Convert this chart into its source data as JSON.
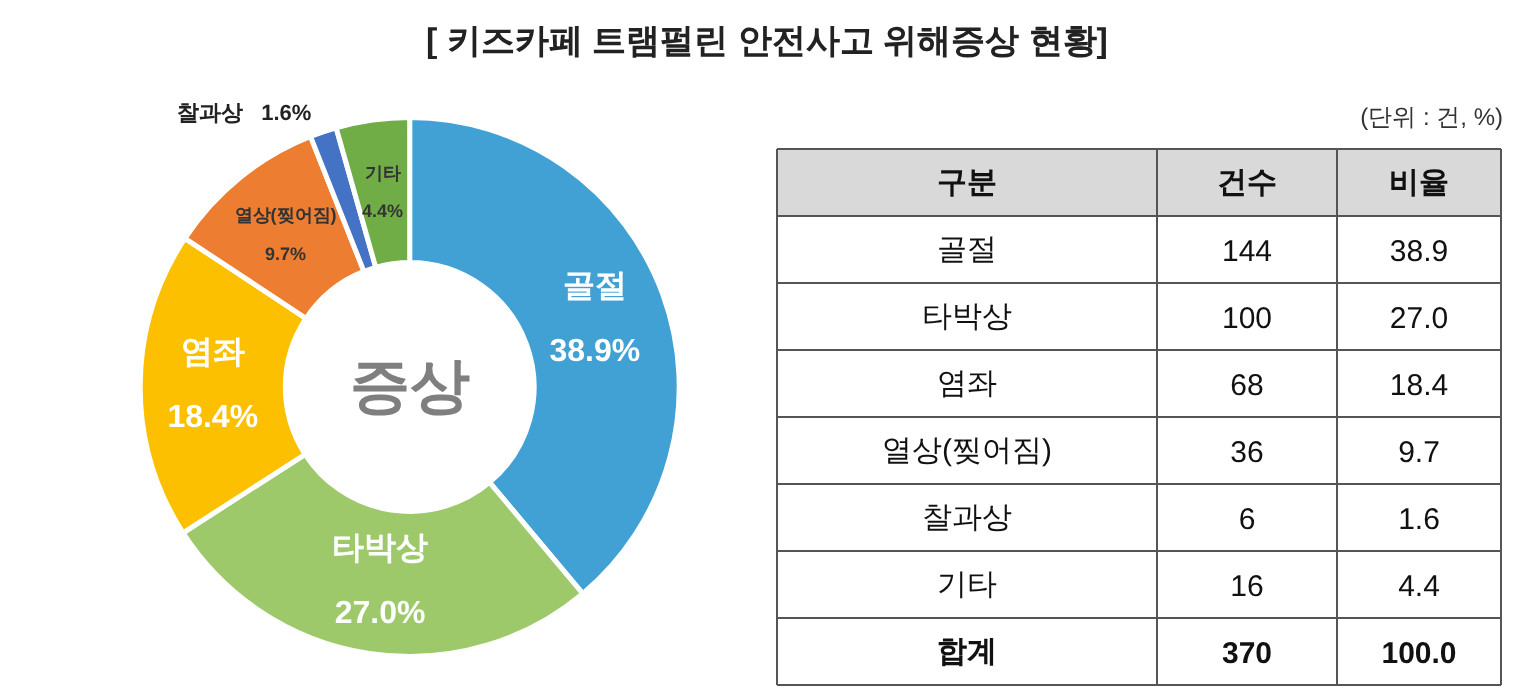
{
  "chart_data": [
    {
      "type": "donut",
      "title": "[ 키즈카페 트램펄린 안전사고 위해증상 현황]",
      "categories": [
        "골절",
        "타박상",
        "염좌",
        "열상(찢어짐)",
        "찰과상",
        "기타"
      ],
      "values": [
        38.9,
        27.0,
        18.4,
        9.7,
        1.6,
        4.4
      ],
      "value_labels": [
        "38.9%",
        "27.0%",
        "18.4%",
        "9.7%",
        "1.6%",
        "4.4%"
      ],
      "colors": [
        "#41a0d4",
        "#9dc96b",
        "#fcc000",
        "#ed7d31",
        "#4472c4",
        "#70ad47"
      ],
      "annotations": [
        "증상"
      ]
    },
    {
      "type": "other",
      "annotations": [
        "(단위 : 건, %)",
        "구분",
        "건수",
        "비율",
        "골절",
        "144",
        "38.9",
        "타박상",
        "100",
        "27.0",
        "염좌",
        "68",
        "18.4",
        "열상(찢어짐)",
        "36",
        "9.7",
        "찰과상",
        "6",
        "1.6",
        "기타",
        "16",
        "4.4",
        "합계",
        "370",
        "100.0"
      ]
    }
  ]
}
